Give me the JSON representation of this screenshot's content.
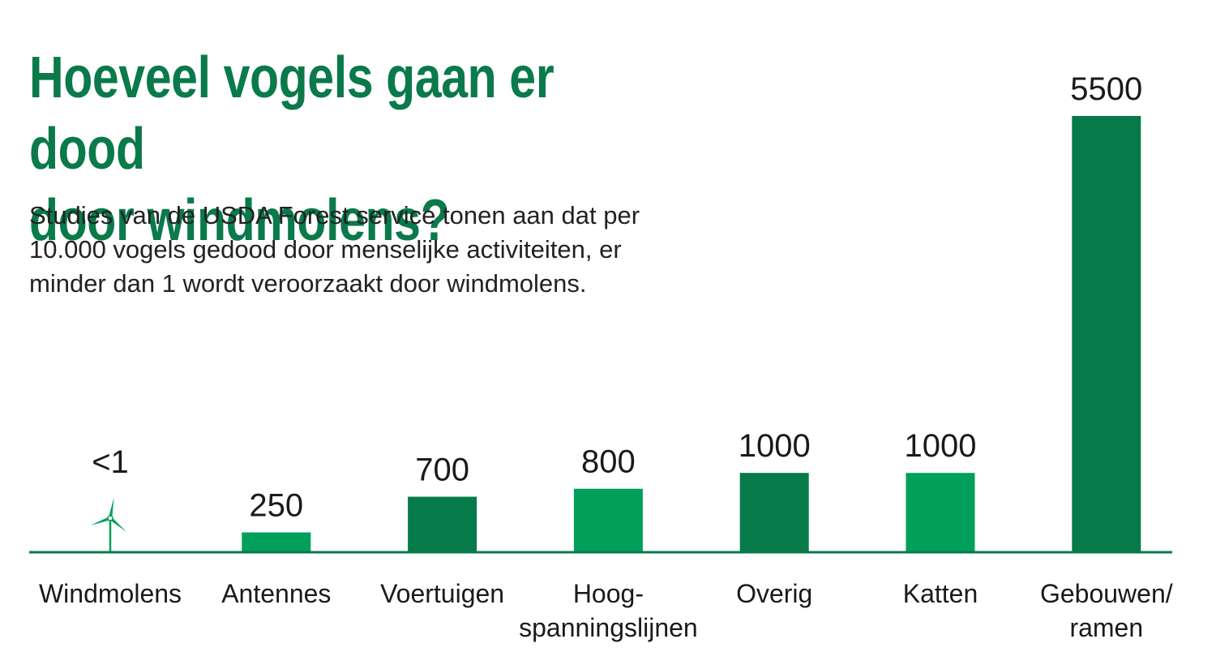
{
  "title_line1": "Hoeveel vogels gaan er dood",
  "title_line2": "door windmolens?",
  "subtitle_lines": [
    "Studies van de USDA Forest service tonen aan dat per",
    "10.000 vogels gedood door menselijke activiteiten, er",
    "minder dan 1 wordt veroorzaakt door windmolens."
  ],
  "colors": {
    "title": "#0a7a4a",
    "bar_dark": "#077a4a",
    "bar_light": "#00a05a",
    "axis": "#0a7a4a",
    "text": "#1a1a1a"
  },
  "chart_data": {
    "type": "bar",
    "title": "Hoeveel vogels gaan er dood door windmolens?",
    "xlabel": "",
    "ylabel": "",
    "grid": false,
    "ylim": [
      0,
      5500
    ],
    "categories": [
      [
        "Windmolens"
      ],
      [
        "Antennes"
      ],
      [
        "Voertuigen"
      ],
      [
        "Hoog-",
        "spanningslijnen"
      ],
      [
        "Overig"
      ],
      [
        "Katten"
      ],
      [
        "Gebouwen/",
        "ramen"
      ]
    ],
    "values": [
      0.5,
      250,
      700,
      800,
      1000,
      1000,
      5500
    ],
    "value_labels": [
      "<1",
      "250",
      "700",
      "800",
      "1000",
      "1000",
      "5500"
    ],
    "bar_colors": [
      "bar_light",
      "bar_light",
      "bar_dark",
      "bar_light",
      "bar_dark",
      "bar_light",
      "bar_dark"
    ],
    "special_marks": [
      "wind-turbine-icon",
      null,
      null,
      null,
      null,
      null,
      null
    ]
  }
}
